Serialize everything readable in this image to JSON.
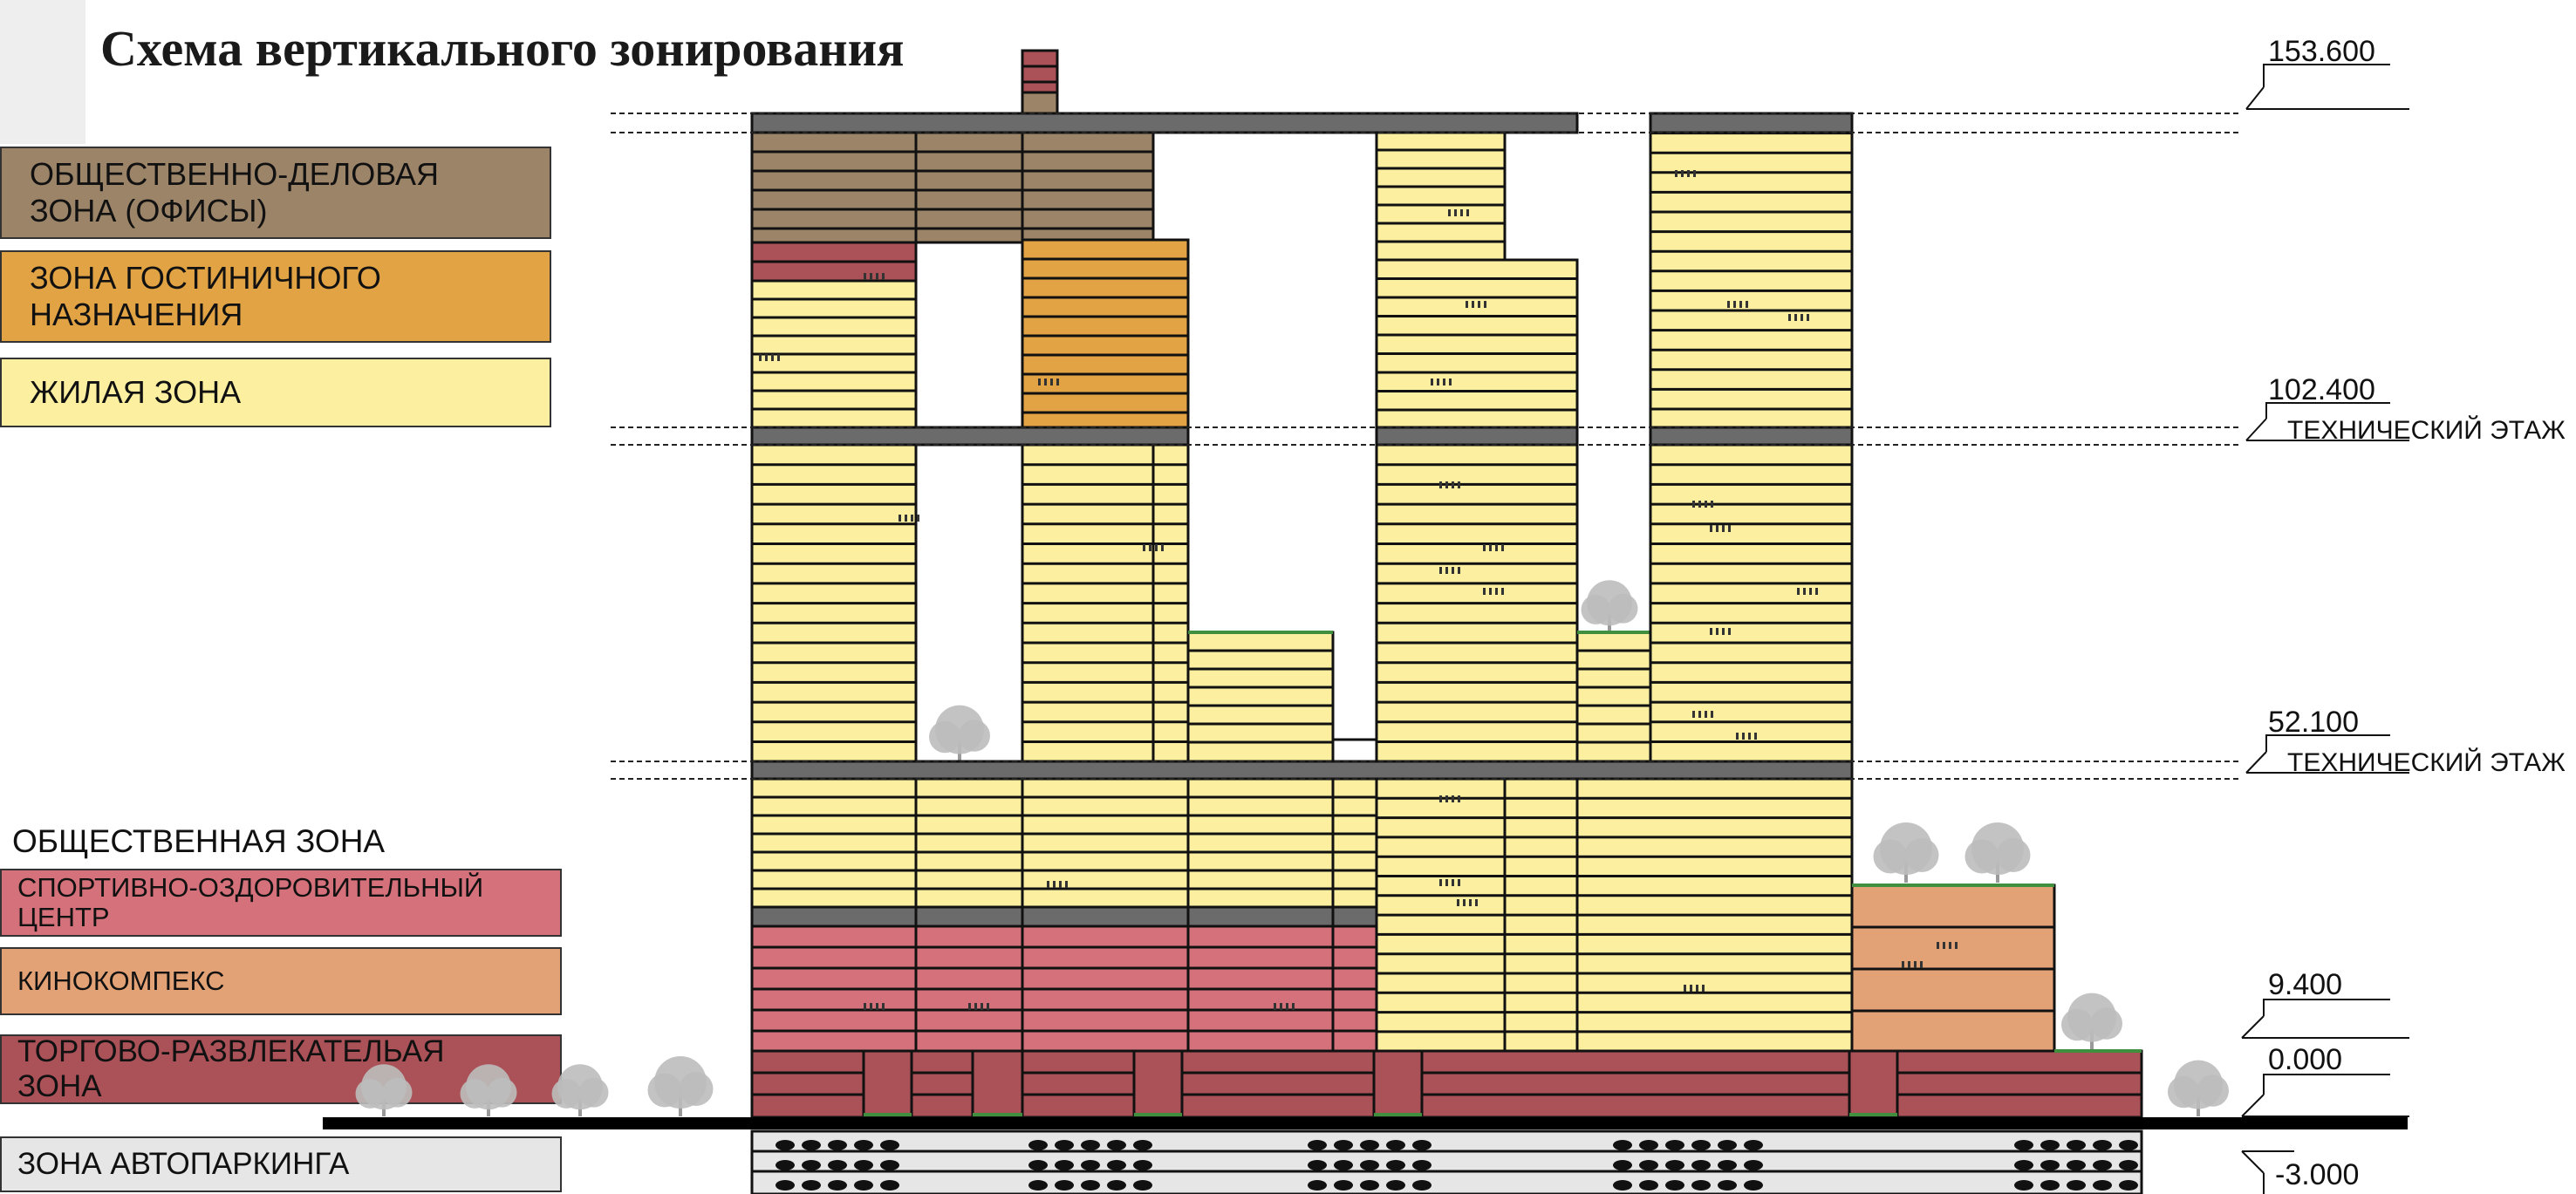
{
  "title": "Схема вертикального зонирования",
  "legend_top": [
    {
      "id": "offices",
      "line1": "ОБЩЕСТВЕННО-ДЕЛОВАЯ",
      "line2": "ЗОНА (ОФИСЫ)",
      "color": "#9c8468"
    },
    {
      "id": "hotel",
      "line1": "ЗОНА ГОСТИНИЧНОГО",
      "line2": "НАЗНАЧЕНИЯ",
      "color": "#e2a345"
    },
    {
      "id": "residential",
      "line1": "ЖИЛАЯ ЗОНА",
      "line2": "",
      "color": "#fcf0a0"
    }
  ],
  "public_zone_heading": "ОБЩЕСТВЕННАЯ ЗОНА",
  "legend_bottom": [
    {
      "id": "sport",
      "line1": "СПОРТИВНО-ОЗДОРОВИТЕЛЬНЫЙ",
      "line2": "ЦЕНТР",
      "color": "#d4717a"
    },
    {
      "id": "cinema",
      "line1": "КИНОКОМПЕКС",
      "line2": "",
      "color": "#e3a276"
    },
    {
      "id": "retail",
      "line1": "ТОРГОВО-РАЗВЛЕКАТЕЛЬАЯ",
      "line2": "ЗОНА",
      "color": "#ab5158"
    },
    {
      "id": "parking",
      "line1": "ЗОНА АВТОПАРКИНГА",
      "line2": "",
      "color": "#e6e6e6"
    }
  ],
  "levels": [
    {
      "mark": "153.600",
      "note": ""
    },
    {
      "mark": "102.400",
      "note": "ТЕХНИЧЕСКИЙ ЭТАЖ"
    },
    {
      "mark": "52.100",
      "note": "ТЕХНИЧЕСКИЙ ЭТАЖ"
    },
    {
      "mark": "9.400",
      "note": ""
    },
    {
      "mark": "0.000",
      "note": ""
    },
    {
      "mark": "-3.000",
      "note": ""
    }
  ],
  "colors": {
    "technical_floor": "#6b6b6b",
    "outline": "#111111",
    "ground": "#000000",
    "roof_green": "#3f8f3f",
    "tree": "#bdbdbd"
  }
}
